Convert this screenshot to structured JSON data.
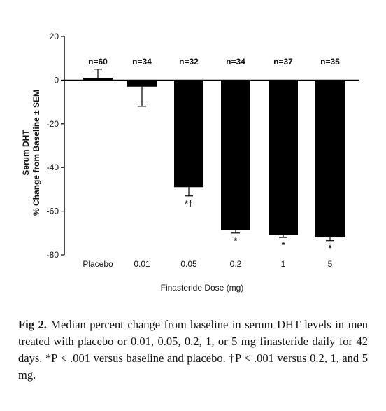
{
  "chart_data": {
    "type": "bar",
    "xlabel": "Finasteride Dose (mg)",
    "ylabel_lines": [
      "Serum DHT",
      "% Change from Baseline ± SEM"
    ],
    "ylim": [
      -80,
      20
    ],
    "yticks": [
      20,
      0,
      -20,
      -40,
      -60,
      -80
    ],
    "categories": [
      "Placebo",
      "0.01",
      "0.05",
      "0.2",
      "1",
      "5"
    ],
    "values": [
      1,
      -3,
      -49,
      -68.5,
      -71,
      -72
    ],
    "sem": [
      4,
      9,
      4,
      1.5,
      1,
      1.5
    ],
    "n_labels": [
      "n=60",
      "n=34",
      "n=32",
      "n=34",
      "n=37",
      "n=35"
    ],
    "significance": [
      "",
      "",
      "*†",
      "*",
      "*",
      "*"
    ],
    "bar_color": "#000000"
  },
  "caption": {
    "label": "Fig 2.",
    "text": " Median percent change from baseline in serum DHT levels in men treated with placebo or 0.01, 0.05, 0.2, 1, or 5 mg finasteride daily for 42 days. *P < .001 versus baseline and placebo. †P < .001 versus 0.2, 1, and 5 mg."
  }
}
